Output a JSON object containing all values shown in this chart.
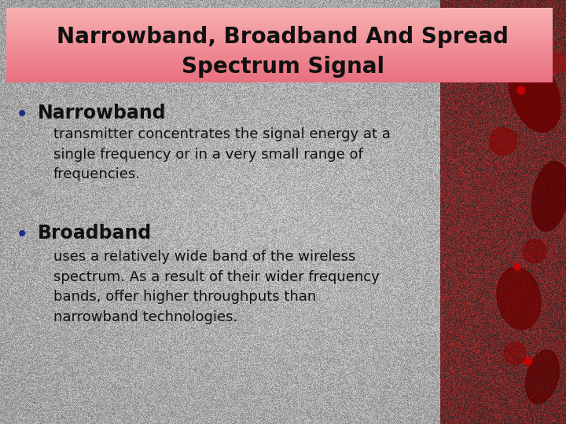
{
  "title_line1": "Narrowband, Broadband And Spread",
  "title_line2": "Spectrum Signal",
  "title_bg_top": "#F8B8B8",
  "title_bg_bot": "#F07878",
  "title_text_color": "#111111",
  "bg_color_light": "#D8D8D8",
  "bg_color_dark": "#A8A8A8",
  "bullet1_header": "Narrowband",
  "bullet1_text": "transmitter concentrates the signal energy at a\nsingle frequency or in a very small range of\nfrequencies.",
  "bullet2_header": "Broadband",
  "bullet2_text": "uses a relatively wide band of the wireless\nspectrum. As a result of their wider frequency\nbands, offer higher throughputs than\nnarrowband technologies.",
  "bullet_color": "#1a2e8a",
  "header_color": "#111111",
  "body_text_color": "#111111",
  "title_fontsize": 20,
  "header_fontsize": 17,
  "body_fontsize": 13,
  "bullet_fontsize": 20
}
